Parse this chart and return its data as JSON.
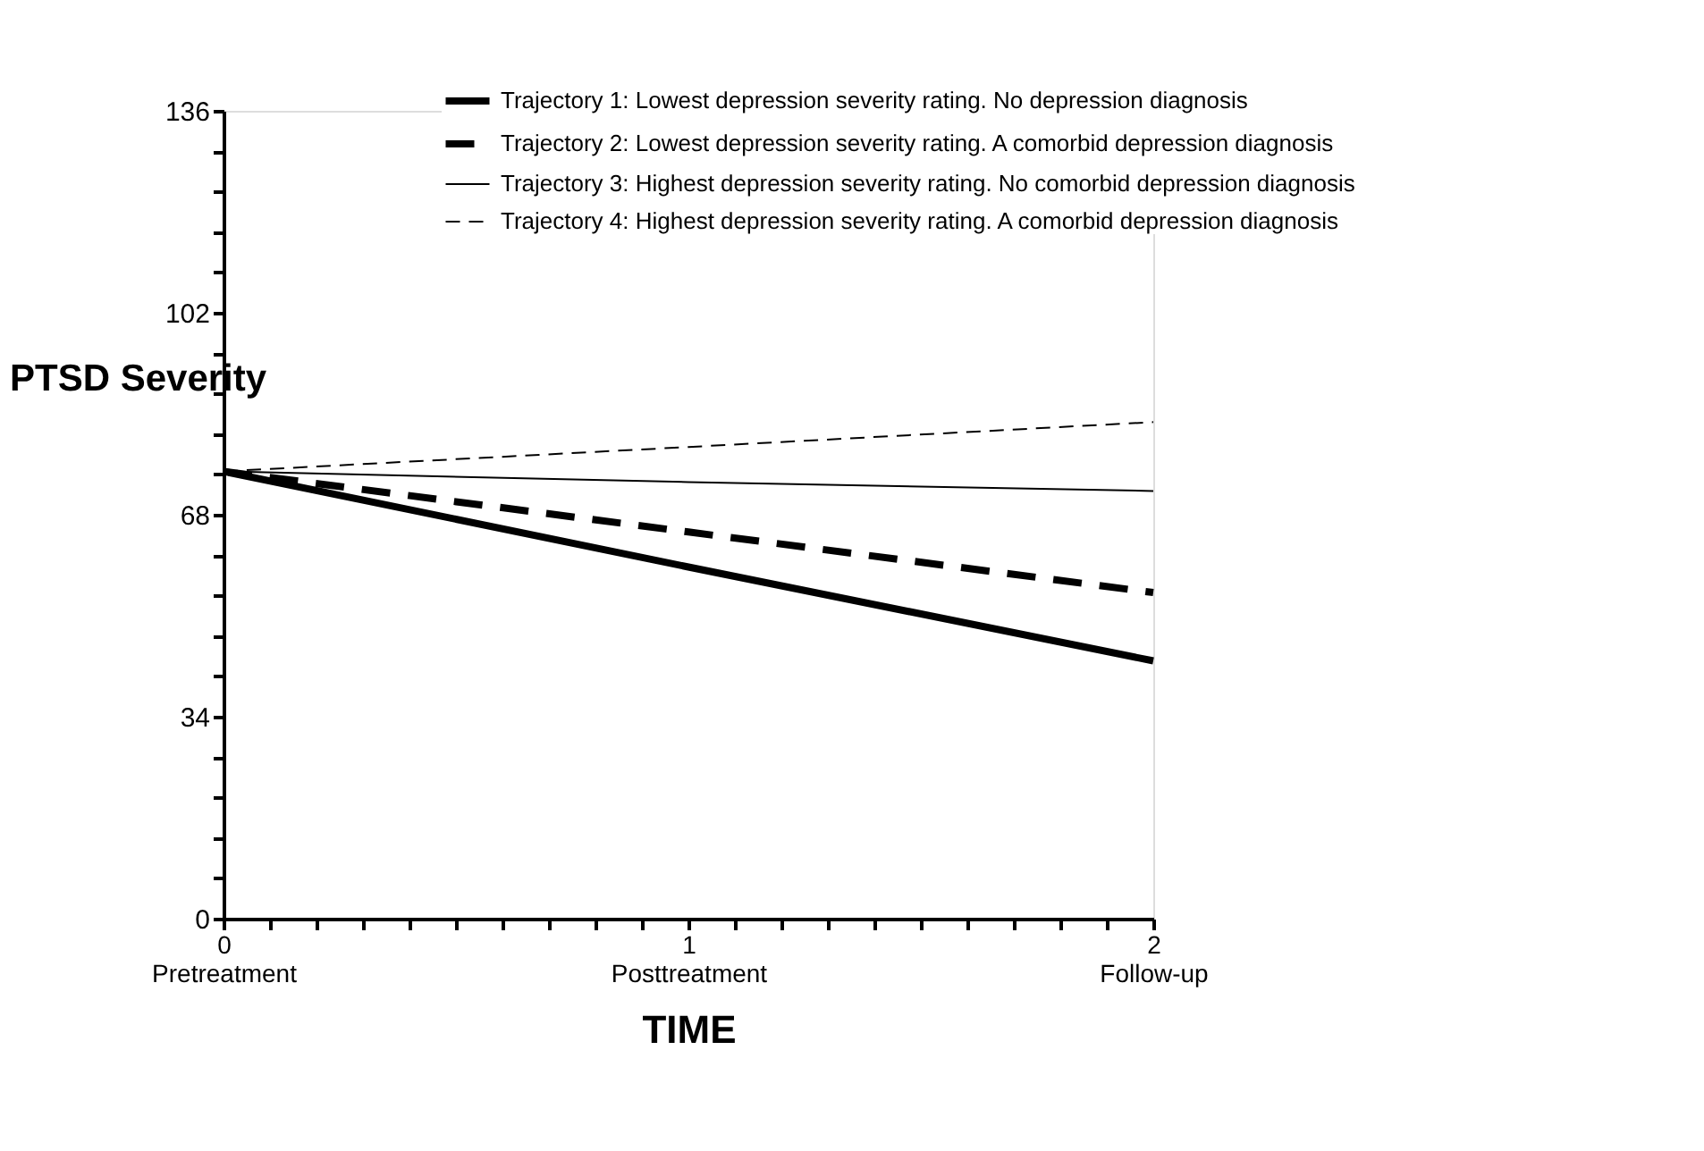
{
  "chart_data": {
    "type": "line",
    "xlabel": "TIME",
    "ylabel": "PTSD Severity",
    "x": [
      0,
      1,
      2
    ],
    "xlim": [
      0,
      2
    ],
    "xticks": [
      {
        "value": 0,
        "label": "0\nPretreatment"
      },
      {
        "value": 0.1,
        "label": null
      },
      {
        "value": 0.2,
        "label": null
      },
      {
        "value": 0.3,
        "label": null
      },
      {
        "value": 0.4,
        "label": null
      },
      {
        "value": 0.5,
        "label": null
      },
      {
        "value": 0.6,
        "label": null
      },
      {
        "value": 0.7,
        "label": null
      },
      {
        "value": 0.8,
        "label": null
      },
      {
        "value": 0.9,
        "label": null
      },
      {
        "value": 1,
        "label": "1\nPosttreatment"
      },
      {
        "value": 1.1,
        "label": null
      },
      {
        "value": 1.2,
        "label": null
      },
      {
        "value": 1.3,
        "label": null
      },
      {
        "value": 1.4,
        "label": null
      },
      {
        "value": 1.5,
        "label": null
      },
      {
        "value": 1.6,
        "label": null
      },
      {
        "value": 1.7,
        "label": null
      },
      {
        "value": 1.8,
        "label": null
      },
      {
        "value": 1.9,
        "label": null
      },
      {
        "value": 2,
        "label": "2\nFollow-up"
      }
    ],
    "ylim": [
      0,
      136
    ],
    "yticks": [
      0,
      {
        "value": 6.8,
        "label": null
      },
      {
        "value": 13.6,
        "label": null
      },
      {
        "value": 20.4,
        "label": null
      },
      {
        "value": 27.2,
        "label": null
      },
      34,
      {
        "value": 40.8,
        "label": null
      },
      {
        "value": 47.6,
        "label": null
      },
      {
        "value": 54.4,
        "label": null
      },
      {
        "value": 61.2,
        "label": null
      },
      68,
      {
        "value": 74.8,
        "label": null
      },
      {
        "value": 81.6,
        "label": null
      },
      {
        "value": 88.4,
        "label": null
      },
      {
        "value": 95.2,
        "label": null
      },
      102,
      {
        "value": 108.8,
        "label": null
      },
      {
        "value": 115.6,
        "label": null
      },
      {
        "value": 122.4,
        "label": null
      },
      {
        "value": 129.2,
        "label": null
      },
      136
    ],
    "grid": false,
    "legend": "top right",
    "marker": "none",
    "series": [
      {
        "name": "Trajectory 1: Lowest depression severity rating. No depression diagnosis",
        "color": "#000000",
        "line_style": "solid",
        "values": [
          75.3,
          59.2,
          43.4
        ]
      },
      {
        "name": "Trajectory 2: Lowest depression severity rating. A comorbid depression diagnosis",
        "color": "#000000",
        "line_style": "dashed",
        "values": [
          75.3,
          65.1,
          54.9
        ]
      },
      {
        "name": "Trajectory 3: Highest depression severity rating. No comorbid depression diagnosis",
        "color": "#000000",
        "line_style": "solid",
        "values": [
          75.3,
          73.5,
          72.0
        ]
      },
      {
        "name": "Trajectory 4: Highest depression severity rating. A comorbid depression diagnosis",
        "color": "#000000",
        "line_style": "dashed",
        "values": [
          75.3,
          79.4,
          83.6
        ]
      }
    ]
  }
}
